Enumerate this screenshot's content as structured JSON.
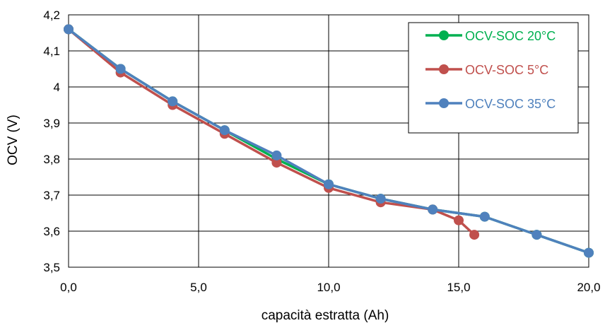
{
  "chart_data": {
    "type": "line",
    "title": "",
    "xlabel": "capacità estratta (Ah)",
    "ylabel": "OCV (V)",
    "xlim": [
      0,
      20
    ],
    "ylim": [
      3.5,
      4.2
    ],
    "x_ticks": [
      0,
      5,
      10,
      15,
      20
    ],
    "x_tick_labels": [
      "0,0",
      "5,0",
      "10,0",
      "15,0",
      "20,0"
    ],
    "y_ticks": [
      3.5,
      3.6,
      3.7,
      3.8,
      3.9,
      4.0,
      4.1,
      4.2
    ],
    "y_tick_labels": [
      "3,5",
      "3,6",
      "3,7",
      "3,8",
      "3,9",
      "4",
      "4,1",
      "4,2"
    ],
    "grid": true,
    "legend_position": "top-right",
    "series": [
      {
        "name": "OCV-SOC 20°C",
        "color": "#00B050",
        "x": [
          0,
          2,
          4,
          6,
          8,
          10,
          12,
          14,
          16,
          18,
          20
        ],
        "y": [
          4.16,
          4.05,
          3.96,
          3.88,
          3.8,
          3.73,
          3.69,
          3.66,
          3.64,
          3.59,
          3.54
        ]
      },
      {
        "name": "OCV-SOC 5°C",
        "color": "#C0504D",
        "x": [
          0,
          2,
          4,
          6,
          8,
          10,
          12,
          14,
          15,
          15.6
        ],
        "y": [
          4.16,
          4.04,
          3.95,
          3.87,
          3.79,
          3.72,
          3.68,
          3.66,
          3.63,
          3.59
        ]
      },
      {
        "name": "OCV-SOC 35°C",
        "color": "#4F81BD",
        "x": [
          0,
          2,
          4,
          6,
          8,
          10,
          12,
          14,
          16,
          18,
          20
        ],
        "y": [
          4.16,
          4.05,
          3.96,
          3.88,
          3.81,
          3.73,
          3.69,
          3.66,
          3.64,
          3.59,
          3.54
        ]
      }
    ]
  }
}
